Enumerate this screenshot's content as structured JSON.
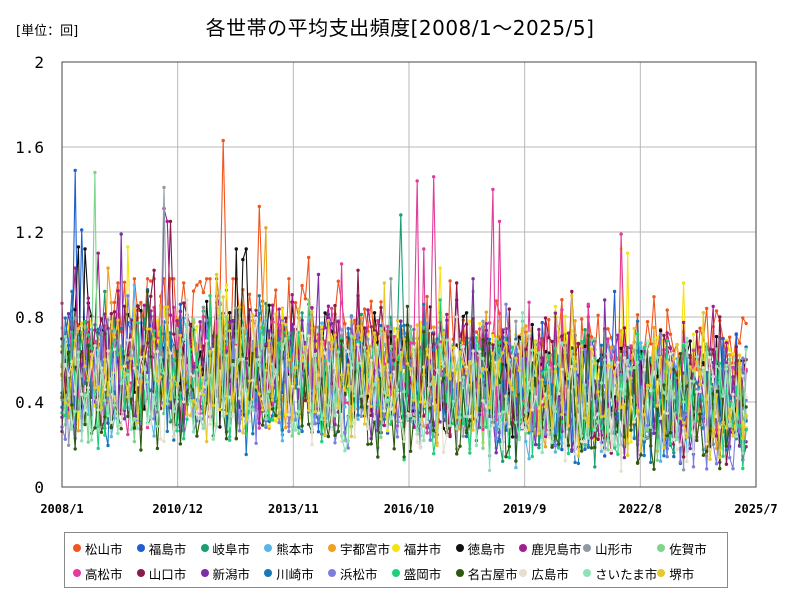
{
  "unit_label": "[単位：回]",
  "title": "各世帯の平均支出頻度[2008/1～2025/5]",
  "chart_data": {
    "type": "line",
    "x_ticks": [
      "2008/1",
      "2010/12",
      "2013/11",
      "2016/10",
      "2019/9",
      "2022/8",
      "2025/7"
    ],
    "y_ticks": [
      "0",
      "0.4",
      "0.8",
      "1.2",
      "1.6",
      "2"
    ],
    "ylim": [
      0,
      2
    ],
    "xlim": [
      "2008/1",
      "2025/7"
    ],
    "grid": true,
    "legend_position": "bottom",
    "x_start": "2008-01",
    "months": 209,
    "series": [
      {
        "name": "松山市",
        "color": "#f0561e",
        "anchors": [
          [
            0,
            0.62
          ],
          [
            34,
            0.92
          ],
          [
            68,
            0.72
          ],
          [
            104,
            0.58
          ],
          [
            140,
            0.54
          ],
          [
            176,
            0.58
          ],
          [
            208,
            0.57
          ]
        ],
        "peaks": [
          [
            17,
            0.96
          ],
          [
            41,
            0.95
          ],
          [
            49,
            1.63
          ],
          [
            60,
            1.32
          ],
          [
            75,
            1.08
          ],
          [
            118,
            0.97
          ],
          [
            160,
            0.8
          ],
          [
            196,
            0.84
          ],
          [
            208,
            0.77
          ]
        ]
      },
      {
        "name": "福島市",
        "color": "#1f5fcf",
        "anchors": [
          [
            0,
            0.55
          ],
          [
            34,
            0.62
          ],
          [
            68,
            0.52
          ],
          [
            104,
            0.48
          ],
          [
            140,
            0.44
          ],
          [
            176,
            0.4
          ],
          [
            208,
            0.42
          ]
        ],
        "peaks": [
          [
            4,
            1.49
          ],
          [
            6,
            1.21
          ],
          [
            36,
            0.86
          ],
          [
            90,
            0.76
          ],
          [
            150,
            0.82
          ],
          [
            168,
            0.92
          ],
          [
            205,
            0.72
          ]
        ]
      },
      {
        "name": "岐阜市",
        "color": "#1a9e74",
        "anchors": [
          [
            0,
            0.55
          ],
          [
            34,
            0.57
          ],
          [
            68,
            0.55
          ],
          [
            104,
            0.55
          ],
          [
            140,
            0.45
          ],
          [
            176,
            0.4
          ],
          [
            208,
            0.36
          ]
        ],
        "peaks": [
          [
            13,
            0.92
          ],
          [
            75,
            0.86
          ],
          [
            103,
            1.28
          ],
          [
            150,
            0.8
          ],
          [
            196,
            0.66
          ]
        ]
      },
      {
        "name": "熊本市",
        "color": "#5ab5e8",
        "anchors": [
          [
            0,
            0.5
          ],
          [
            34,
            0.52
          ],
          [
            68,
            0.5
          ],
          [
            104,
            0.48
          ],
          [
            140,
            0.42
          ],
          [
            176,
            0.38
          ],
          [
            208,
            0.36
          ]
        ],
        "peaks": [
          [
            22,
            0.95
          ],
          [
            85,
            0.74
          ],
          [
            140,
            0.78
          ],
          [
            185,
            0.66
          ]
        ]
      },
      {
        "name": "宇都宮市",
        "color": "#f0a020",
        "anchors": [
          [
            0,
            0.55
          ],
          [
            34,
            0.58
          ],
          [
            68,
            0.54
          ],
          [
            104,
            0.52
          ],
          [
            140,
            0.5
          ],
          [
            176,
            0.46
          ],
          [
            208,
            0.42
          ]
        ],
        "peaks": [
          [
            14,
            1.03
          ],
          [
            62,
            1.22
          ],
          [
            95,
            0.82
          ],
          [
            145,
            0.74
          ],
          [
            180,
            0.75
          ]
        ]
      },
      {
        "name": "福井市",
        "color": "#f6e312",
        "anchors": [
          [
            0,
            0.58
          ],
          [
            34,
            0.62
          ],
          [
            68,
            0.58
          ],
          [
            104,
            0.56
          ],
          [
            140,
            0.52
          ],
          [
            176,
            0.46
          ],
          [
            208,
            0.44
          ]
        ],
        "peaks": [
          [
            20,
            1.13
          ],
          [
            50,
            0.95
          ],
          [
            95,
            0.82
          ],
          [
            115,
            1.03
          ],
          [
            150,
            0.85
          ],
          [
            170,
            1.12
          ],
          [
            172,
            1.1
          ],
          [
            189,
            0.96
          ],
          [
            195,
            0.82
          ]
        ]
      },
      {
        "name": "徳島市",
        "color": "#111111",
        "anchors": [
          [
            0,
            0.55
          ],
          [
            34,
            0.6
          ],
          [
            68,
            0.56
          ],
          [
            104,
            0.54
          ],
          [
            140,
            0.5
          ],
          [
            176,
            0.46
          ],
          [
            208,
            0.44
          ]
        ],
        "peaks": [
          [
            5,
            1.13
          ],
          [
            7,
            1.12
          ],
          [
            53,
            1.12
          ],
          [
            55,
            1.07
          ],
          [
            56,
            1.12
          ],
          [
            70,
            0.87
          ],
          [
            103,
            0.78
          ],
          [
            123,
            0.82
          ],
          [
            140,
            0.68
          ]
        ]
      },
      {
        "name": "鹿児島市",
        "color": "#a31d8f",
        "anchors": [
          [
            0,
            0.58
          ],
          [
            34,
            0.6
          ],
          [
            68,
            0.58
          ],
          [
            104,
            0.56
          ],
          [
            140,
            0.52
          ],
          [
            176,
            0.48
          ],
          [
            208,
            0.45
          ]
        ],
        "peaks": [
          [
            4,
            1.03
          ],
          [
            11,
            1.1
          ],
          [
            31,
            1.31
          ],
          [
            32,
            1.25
          ],
          [
            90,
            0.9
          ],
          [
            120,
            0.88
          ],
          [
            160,
            0.85
          ],
          [
            198,
            0.85
          ]
        ]
      },
      {
        "name": "山形市",
        "color": "#8e9aa6",
        "anchors": [
          [
            0,
            0.52
          ],
          [
            34,
            0.56
          ],
          [
            68,
            0.52
          ],
          [
            104,
            0.5
          ],
          [
            140,
            0.46
          ],
          [
            176,
            0.42
          ],
          [
            208,
            0.4
          ]
        ],
        "peaks": [
          [
            31,
            1.41
          ],
          [
            100,
            0.98
          ],
          [
            138,
            0.78
          ],
          [
            190,
            0.68
          ]
        ]
      },
      {
        "name": "佐賀市",
        "color": "#7dd68a",
        "anchors": [
          [
            0,
            0.52
          ],
          [
            34,
            0.56
          ],
          [
            68,
            0.52
          ],
          [
            104,
            0.5
          ],
          [
            140,
            0.46
          ],
          [
            176,
            0.4
          ],
          [
            208,
            0.38
          ]
        ],
        "peaks": [
          [
            10,
            1.48
          ],
          [
            75,
            0.88
          ],
          [
            125,
            0.92
          ],
          [
            175,
            0.62
          ]
        ]
      },
      {
        "name": "高松市",
        "color": "#e23c9a",
        "anchors": [
          [
            0,
            0.55
          ],
          [
            34,
            0.56
          ],
          [
            68,
            0.55
          ],
          [
            104,
            0.56
          ],
          [
            140,
            0.56
          ],
          [
            176,
            0.46
          ],
          [
            208,
            0.4
          ]
        ],
        "peaks": [
          [
            85,
            1.05
          ],
          [
            108,
            1.44
          ],
          [
            110,
            1.12
          ],
          [
            113,
            1.46
          ],
          [
            131,
            1.4
          ],
          [
            133,
            1.25
          ],
          [
            170,
            1.19
          ],
          [
            160,
            0.86
          ]
        ]
      },
      {
        "name": "山口市",
        "color": "#8a1a48",
        "anchors": [
          [
            0,
            0.56
          ],
          [
            34,
            0.6
          ],
          [
            68,
            0.56
          ],
          [
            104,
            0.54
          ],
          [
            140,
            0.5
          ],
          [
            176,
            0.44
          ],
          [
            208,
            0.42
          ]
        ],
        "peaks": [
          [
            28,
            1.02
          ],
          [
            33,
            1.25
          ],
          [
            90,
            1.02
          ],
          [
            120,
            0.96
          ],
          [
            155,
            0.92
          ],
          [
            200,
            0.8
          ]
        ]
      },
      {
        "name": "新潟市",
        "color": "#7b2ea6",
        "anchors": [
          [
            0,
            0.54
          ],
          [
            34,
            0.56
          ],
          [
            68,
            0.52
          ],
          [
            104,
            0.5
          ],
          [
            140,
            0.46
          ],
          [
            176,
            0.4
          ],
          [
            208,
            0.38
          ]
        ],
        "peaks": [
          [
            18,
            1.19
          ],
          [
            78,
            1.0
          ],
          [
            125,
            0.98
          ],
          [
            165,
            0.88
          ]
        ]
      },
      {
        "name": "川崎市",
        "color": "#1979b8",
        "anchors": [
          [
            0,
            0.5
          ],
          [
            34,
            0.52
          ],
          [
            68,
            0.48
          ],
          [
            104,
            0.46
          ],
          [
            140,
            0.42
          ],
          [
            176,
            0.38
          ],
          [
            208,
            0.34
          ]
        ],
        "peaks": [
          [
            3,
            0.92
          ],
          [
            60,
            0.9
          ],
          [
            110,
            0.86
          ],
          [
            175,
            0.78
          ]
        ]
      },
      {
        "name": "浜松市",
        "color": "#7c7de0",
        "anchors": [
          [
            0,
            0.5
          ],
          [
            34,
            0.52
          ],
          [
            68,
            0.48
          ],
          [
            104,
            0.46
          ],
          [
            140,
            0.42
          ],
          [
            176,
            0.36
          ],
          [
            208,
            0.3
          ]
        ],
        "peaks": [
          [
            20,
            0.9
          ],
          [
            88,
            0.8
          ],
          [
            135,
            0.86
          ],
          [
            182,
            0.72
          ]
        ]
      },
      {
        "name": "盛岡市",
        "color": "#1ed07a",
        "anchors": [
          [
            0,
            0.48
          ],
          [
            34,
            0.52
          ],
          [
            68,
            0.48
          ],
          [
            104,
            0.46
          ],
          [
            140,
            0.42
          ],
          [
            176,
            0.38
          ],
          [
            208,
            0.36
          ]
        ],
        "peaks": [
          [
            45,
            0.9
          ],
          [
            115,
            0.88
          ],
          [
            175,
            0.72
          ]
        ]
      },
      {
        "name": "名古屋市",
        "color": "#2e5a0f",
        "anchors": [
          [
            0,
            0.46
          ],
          [
            34,
            0.46
          ],
          [
            68,
            0.44
          ],
          [
            104,
            0.42
          ],
          [
            140,
            0.4
          ],
          [
            176,
            0.36
          ],
          [
            208,
            0.34
          ]
        ],
        "peaks": [
          [
            26,
            0.92
          ],
          [
            105,
            0.85
          ],
          [
            178,
            0.66
          ]
        ]
      },
      {
        "name": "広島市",
        "color": "#e4dfcf",
        "anchors": [
          [
            0,
            0.46
          ],
          [
            34,
            0.48
          ],
          [
            68,
            0.46
          ],
          [
            104,
            0.44
          ],
          [
            140,
            0.42
          ],
          [
            176,
            0.38
          ],
          [
            208,
            0.36
          ]
        ],
        "peaks": [
          [
            38,
            0.88
          ],
          [
            120,
            0.8
          ]
        ]
      },
      {
        "name": "さいたま市",
        "color": "#8ee3b5",
        "anchors": [
          [
            0,
            0.46
          ],
          [
            34,
            0.5
          ],
          [
            68,
            0.46
          ],
          [
            104,
            0.44
          ],
          [
            140,
            0.42
          ],
          [
            176,
            0.38
          ],
          [
            208,
            0.36
          ]
        ],
        "peaks": [
          [
            48,
            0.92
          ],
          [
            140,
            0.82
          ],
          [
            190,
            0.7
          ]
        ]
      },
      {
        "name": "堺市",
        "color": "#e6c82a",
        "anchors": [
          [
            0,
            0.54
          ],
          [
            34,
            0.56
          ],
          [
            68,
            0.54
          ],
          [
            104,
            0.52
          ],
          [
            140,
            0.48
          ],
          [
            176,
            0.44
          ],
          [
            208,
            0.4
          ]
        ],
        "peaks": [
          [
            47,
            1.0
          ],
          [
            98,
            0.96
          ],
          [
            155,
            0.9
          ],
          [
            195,
            0.82
          ]
        ]
      }
    ]
  }
}
